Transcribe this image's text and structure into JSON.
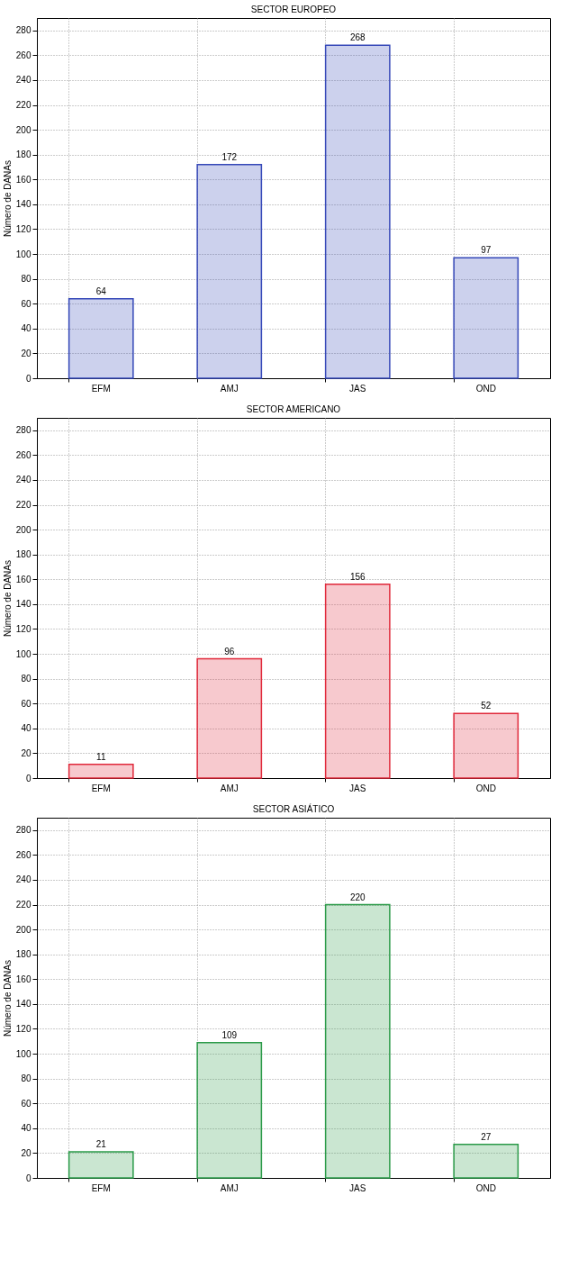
{
  "chart_data": [
    {
      "type": "bar",
      "title": "SECTOR EUROPEO",
      "ylabel": "Número de DANAs",
      "categories": [
        "EFM",
        "AMJ",
        "JAS",
        "OND"
      ],
      "values": [
        64,
        172,
        268,
        97
      ],
      "color": "#3548b8",
      "ylim": [
        0,
        290
      ],
      "yticks": [
        0,
        20,
        40,
        60,
        80,
        100,
        120,
        140,
        160,
        180,
        200,
        220,
        240,
        260,
        280
      ],
      "grid": true,
      "data_labels": true
    },
    {
      "type": "bar",
      "title": "SECTOR AMERICANO",
      "ylabel": "Número de DANAs",
      "categories": [
        "EFM",
        "AMJ",
        "JAS",
        "OND"
      ],
      "values": [
        11,
        96,
        156,
        52
      ],
      "color": "#e0283a",
      "ylim": [
        0,
        290
      ],
      "yticks": [
        0,
        20,
        40,
        60,
        80,
        100,
        120,
        140,
        160,
        180,
        200,
        220,
        240,
        260,
        280
      ],
      "grid": true,
      "data_labels": true
    },
    {
      "type": "bar",
      "title": "SECTOR ASIÁTICO",
      "ylabel": "Número de DANAs",
      "categories": [
        "EFM",
        "AMJ",
        "JAS",
        "OND"
      ],
      "values": [
        21,
        109,
        220,
        27
      ],
      "color": "#2a9a48",
      "ylim": [
        0,
        290
      ],
      "yticks": [
        0,
        20,
        40,
        60,
        80,
        100,
        120,
        140,
        160,
        180,
        200,
        220,
        240,
        260,
        280
      ],
      "grid": true,
      "data_labels": true
    }
  ]
}
